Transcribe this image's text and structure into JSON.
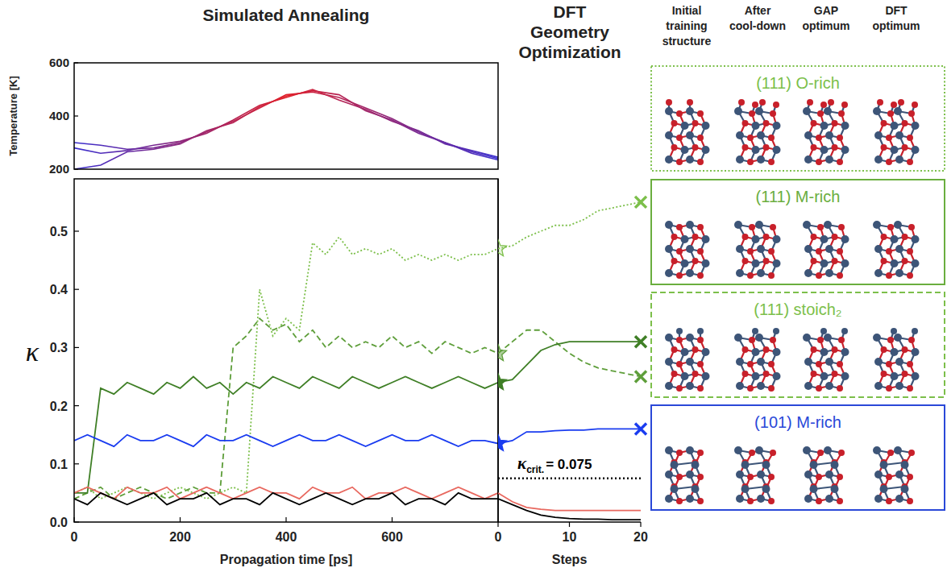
{
  "chart_data": [
    {
      "type": "line",
      "title": "Simulated Annealing",
      "y_label": "Temperature [K]",
      "xlim": [
        0,
        800
      ],
      "ylim": [
        200,
        600
      ],
      "yticks": [
        200,
        400,
        600
      ],
      "tick_labels": "y",
      "grid": false,
      "x": [
        0,
        50,
        100,
        150,
        200,
        250,
        300,
        350,
        400,
        450,
        500,
        550,
        600,
        650,
        700,
        750,
        800
      ],
      "series": [
        {
          "values": [
            300,
            290,
            275,
            280,
            300,
            340,
            380,
            430,
            480,
            490,
            470,
            430,
            390,
            340,
            300,
            265,
            240
          ]
        },
        {
          "values": [
            280,
            260,
            270,
            290,
            305,
            335,
            385,
            440,
            470,
            500,
            460,
            425,
            380,
            345,
            295,
            270,
            245
          ]
        },
        {
          "values": [
            200,
            215,
            265,
            275,
            295,
            345,
            375,
            435,
            475,
            495,
            480,
            420,
            385,
            335,
            300,
            260,
            235
          ]
        }
      ]
    },
    {
      "type": "line",
      "x_label": "Propagation time [ps]",
      "y_label": "κ",
      "xlim": [
        0,
        800
      ],
      "xticks": [
        0,
        200,
        400,
        600
      ],
      "ylim": [
        0,
        0.59
      ],
      "yticks": [
        {
          "value": 0,
          "label": "0.0"
        },
        0.1,
        0.2,
        0.3,
        0.4,
        0.5
      ],
      "grid": false,
      "x": [
        0,
        25,
        50,
        75,
        100,
        125,
        150,
        175,
        200,
        225,
        250,
        275,
        300,
        325,
        350,
        375,
        400,
        425,
        450,
        475,
        500,
        525,
        550,
        575,
        600,
        625,
        650,
        675,
        700,
        725,
        750,
        775,
        800
      ],
      "series": [
        {
          "color": "#7cbf4a",
          "line_style": "dotted",
          "values": [
            0.05,
            0.06,
            0.04,
            0.05,
            0.06,
            0.05,
            0.04,
            0.05,
            0.06,
            0.05,
            0.04,
            0.05,
            0.06,
            0.05,
            0.4,
            0.32,
            0.35,
            0.33,
            0.48,
            0.46,
            0.49,
            0.46,
            0.47,
            0.46,
            0.47,
            0.45,
            0.46,
            0.45,
            0.46,
            0.45,
            0.46,
            0.46,
            0.47
          ]
        },
        {
          "color": "#5e9e3a",
          "line_style": "dashed",
          "values": [
            0.04,
            0.05,
            0.06,
            0.04,
            0.05,
            0.06,
            0.05,
            0.04,
            0.05,
            0.06,
            0.05,
            0.05,
            0.3,
            0.32,
            0.35,
            0.33,
            0.34,
            0.31,
            0.33,
            0.3,
            0.32,
            0.3,
            0.31,
            0.3,
            0.32,
            0.3,
            0.31,
            0.29,
            0.31,
            0.3,
            0.29,
            0.3,
            0.29
          ]
        },
        {
          "color": "#3f7f26",
          "line_style": "solid",
          "values": [
            0.05,
            0.05,
            0.23,
            0.22,
            0.24,
            0.23,
            0.22,
            0.24,
            0.23,
            0.25,
            0.23,
            0.24,
            0.22,
            0.24,
            0.23,
            0.25,
            0.24,
            0.23,
            0.25,
            0.24,
            0.23,
            0.25,
            0.24,
            0.23,
            0.24,
            0.25,
            0.24,
            0.23,
            0.24,
            0.25,
            0.24,
            0.23,
            0.24
          ]
        },
        {
          "color": "#1a3cf0",
          "line_style": "solid",
          "values": [
            0.14,
            0.15,
            0.14,
            0.13,
            0.15,
            0.14,
            0.14,
            0.15,
            0.14,
            0.13,
            0.15,
            0.14,
            0.14,
            0.15,
            0.14,
            0.13,
            0.14,
            0.15,
            0.14,
            0.14,
            0.15,
            0.14,
            0.13,
            0.14,
            0.15,
            0.14,
            0.14,
            0.15,
            0.14,
            0.13,
            0.14,
            0.14,
            0.135
          ]
        },
        {
          "color": "#e8685f",
          "line_style": "solid",
          "values": [
            0.05,
            0.06,
            0.05,
            0.04,
            0.06,
            0.05,
            0.05,
            0.06,
            0.04,
            0.05,
            0.06,
            0.05,
            0.04,
            0.05,
            0.06,
            0.05,
            0.05,
            0.04,
            0.06,
            0.05,
            0.05,
            0.06,
            0.04,
            0.05,
            0.05,
            0.06,
            0.05,
            0.04,
            0.05,
            0.06,
            0.05,
            0.04,
            0.05
          ]
        },
        {
          "color": "#000000",
          "line_style": "solid",
          "values": [
            0.04,
            0.03,
            0.05,
            0.04,
            0.03,
            0.04,
            0.05,
            0.03,
            0.04,
            0.04,
            0.05,
            0.03,
            0.04,
            0.04,
            0.03,
            0.05,
            0.04,
            0.03,
            0.04,
            0.05,
            0.04,
            0.03,
            0.04,
            0.04,
            0.05,
            0.03,
            0.04,
            0.04,
            0.03,
            0.05,
            0.04,
            0.04,
            0.04
          ]
        }
      ]
    },
    {
      "type": "line",
      "title": "DFT Geometry Optimization",
      "x_label": "Steps",
      "xlim": [
        0,
        20
      ],
      "xticks": [
        0,
        10,
        20
      ],
      "ylim": [
        0,
        0.59
      ],
      "tick_labels": "x",
      "grid": false,
      "threshold": {
        "symbol": "κ",
        "subscript": "crit.",
        "text": "= 0.075",
        "value": 0.075
      },
      "x": [
        0,
        2,
        4,
        6,
        8,
        10,
        12,
        14,
        16,
        18,
        20
      ],
      "series": [
        {
          "color": "#7cbf4a",
          "line_style": "dotted",
          "marker": "star-x",
          "values": [
            0.47,
            0.475,
            0.49,
            0.5,
            0.51,
            0.51,
            0.52,
            0.535,
            0.54,
            0.545,
            0.55
          ]
        },
        {
          "color": "#5e9e3a",
          "line_style": "dashed",
          "marker": "star-x",
          "values": [
            0.29,
            0.31,
            0.33,
            0.33,
            0.31,
            0.29,
            0.275,
            0.265,
            0.26,
            0.255,
            0.25
          ]
        },
        {
          "color": "#3f7f26",
          "line_style": "solid",
          "marker": "star-x",
          "values": [
            0.24,
            0.245,
            0.27,
            0.295,
            0.305,
            0.31,
            0.31,
            0.31,
            0.31,
            0.31,
            0.31
          ]
        },
        {
          "color": "#1a3cf0",
          "line_style": "solid",
          "marker": "star-x",
          "values": [
            0.135,
            0.14,
            0.155,
            0.155,
            0.157,
            0.158,
            0.158,
            0.16,
            0.16,
            0.16,
            0.16
          ]
        },
        {
          "color": "#e8685f",
          "line_style": "solid",
          "marker": "none",
          "values": [
            0.05,
            0.035,
            0.025,
            0.022,
            0.02,
            0.02,
            0.02,
            0.02,
            0.02,
            0.02,
            0.02
          ]
        },
        {
          "color": "#000000",
          "line_style": "solid",
          "marker": "none",
          "values": [
            0.04,
            0.03,
            0.02,
            0.012,
            0.008,
            0.006,
            0.005,
            0.005,
            0.004,
            0.004,
            0.004
          ]
        }
      ]
    }
  ],
  "column_heads": [
    "Initial training structure",
    "After cool-down",
    "GAP optimum",
    "DFT optimum"
  ],
  "structures": [
    {
      "title": "(111) O-rich",
      "color": "#7cbf4a",
      "line_style": "dotted"
    },
    {
      "title": "(111) M-rich",
      "color": "#6aae3e",
      "line_style": "solid"
    },
    {
      "title": "(111) stoich₂",
      "color": "#7cbf4a",
      "line_style": "dashed"
    },
    {
      "title": "(101) M-rich",
      "color": "#2a48d8",
      "line_style": "solid"
    }
  ]
}
